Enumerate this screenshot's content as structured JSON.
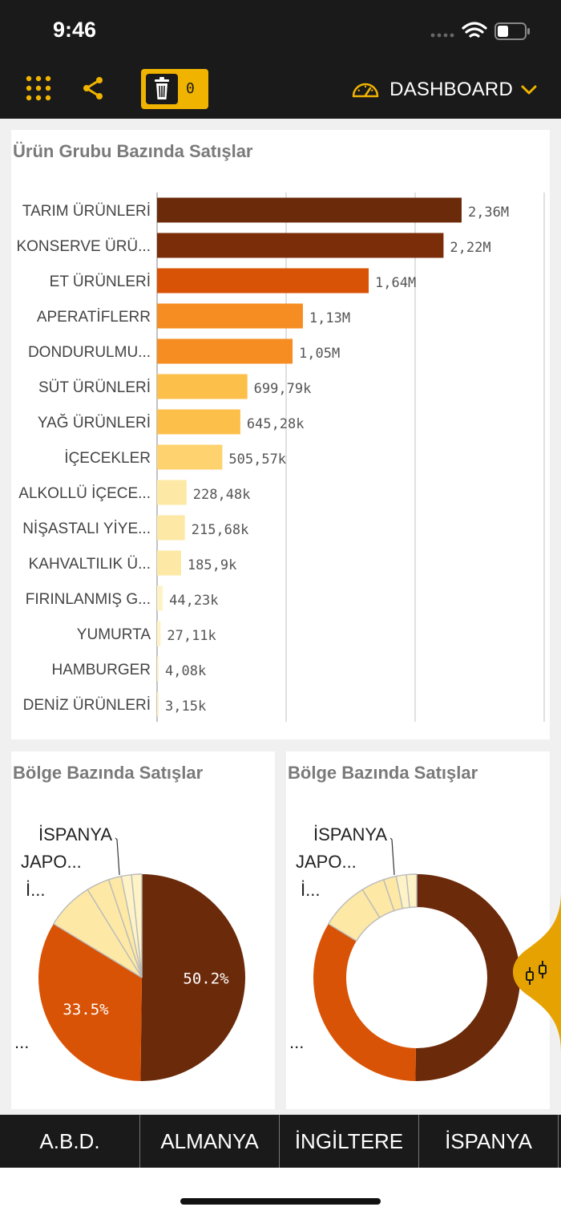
{
  "status_bar": {
    "time": "9:46"
  },
  "toolbar": {
    "selection_count": "0",
    "dashboard_label": "DASHBOARD"
  },
  "colors": {
    "topbar": "#1a1a1a",
    "accent": "#f0b400",
    "bar_palette": [
      "#6b2a0a",
      "#7a2d08",
      "#d95306",
      "#f68d22",
      "#f68d22",
      "#fcbf4a",
      "#fcbf4a",
      "#fed26f",
      "#fde9a5",
      "#fde9a5",
      "#fde9a5",
      "#fef3c6",
      "#fef3c6",
      "#fef3c6",
      "#fef3c6"
    ]
  },
  "bar_chart": {
    "title": "Ürün Grubu Bazında Satışlar",
    "chart_data": {
      "type": "bar",
      "orientation": "horizontal",
      "categories": [
        "TARIM ÜRÜNLERİ",
        "KONSERVE ÜRÜ...",
        "ET ÜRÜNLERİ",
        "APERATİFLERR",
        "DONDURULMU...",
        "SÜT ÜRÜNLERİ",
        "YAĞ ÜRÜNLERİ",
        "İÇECEKLER",
        "ALKOLLÜ İÇECE...",
        "NİŞASTALI YİYE...",
        "KAHVALTILIK Ü...",
        "FIRINLANMIŞ G...",
        "YUMURTA",
        "HAMBURGER",
        "DENİZ ÜRÜNLERİ"
      ],
      "values": [
        2360000,
        2220000,
        1640000,
        1130000,
        1050000,
        699790,
        645280,
        505570,
        228480,
        215680,
        185900,
        44230,
        27110,
        4080,
        3150
      ],
      "value_labels": [
        "2,36M",
        "2,22M",
        "1,64M",
        "1,13M",
        "1,05M",
        "699,79k",
        "645,28k",
        "505,57k",
        "228,48k",
        "215,68k",
        "185,9k",
        "44,23k",
        "27,11k",
        "4,08k",
        "3,15k"
      ],
      "xlim": [
        0,
        3000000
      ],
      "grid": true
    }
  },
  "pie_charts": [
    {
      "title": "Bölge Bazında Satışlar",
      "chart_data": {
        "type": "pie",
        "slices": [
          50.2,
          33.5,
          7.5,
          3.6,
          2.0,
          1.6,
          1.6
        ],
        "slice_labels": [
          "50.2%",
          "33.5%",
          "",
          "",
          "",
          "",
          ""
        ],
        "outside_labels": [
          "İSPANYA",
          "JAPO...",
          "İ...",
          "..."
        ],
        "colors": [
          "#6b2a0a",
          "#d95306",
          "#fde9a5",
          "#fde9a5",
          "#fde9a5",
          "#fef3c6",
          "#fef3c6"
        ]
      }
    },
    {
      "title": "Bölge Bazında Satışlar",
      "chart_data": {
        "type": "donut",
        "slices": [
          50.2,
          33.5,
          7.5,
          3.6,
          2.0,
          1.6,
          1.6
        ],
        "outside_labels": [
          "İSPANYA",
          "JAPO...",
          "İ...",
          "..."
        ],
        "colors": [
          "#6b2a0a",
          "#d95306",
          "#fde9a5",
          "#fde9a5",
          "#fde9a5",
          "#fef3c6",
          "#fef3c6"
        ]
      }
    }
  ],
  "tabs": [
    "A.B.D.",
    "ALMANYA",
    "İNGİLTERE",
    "İSPANYA"
  ]
}
